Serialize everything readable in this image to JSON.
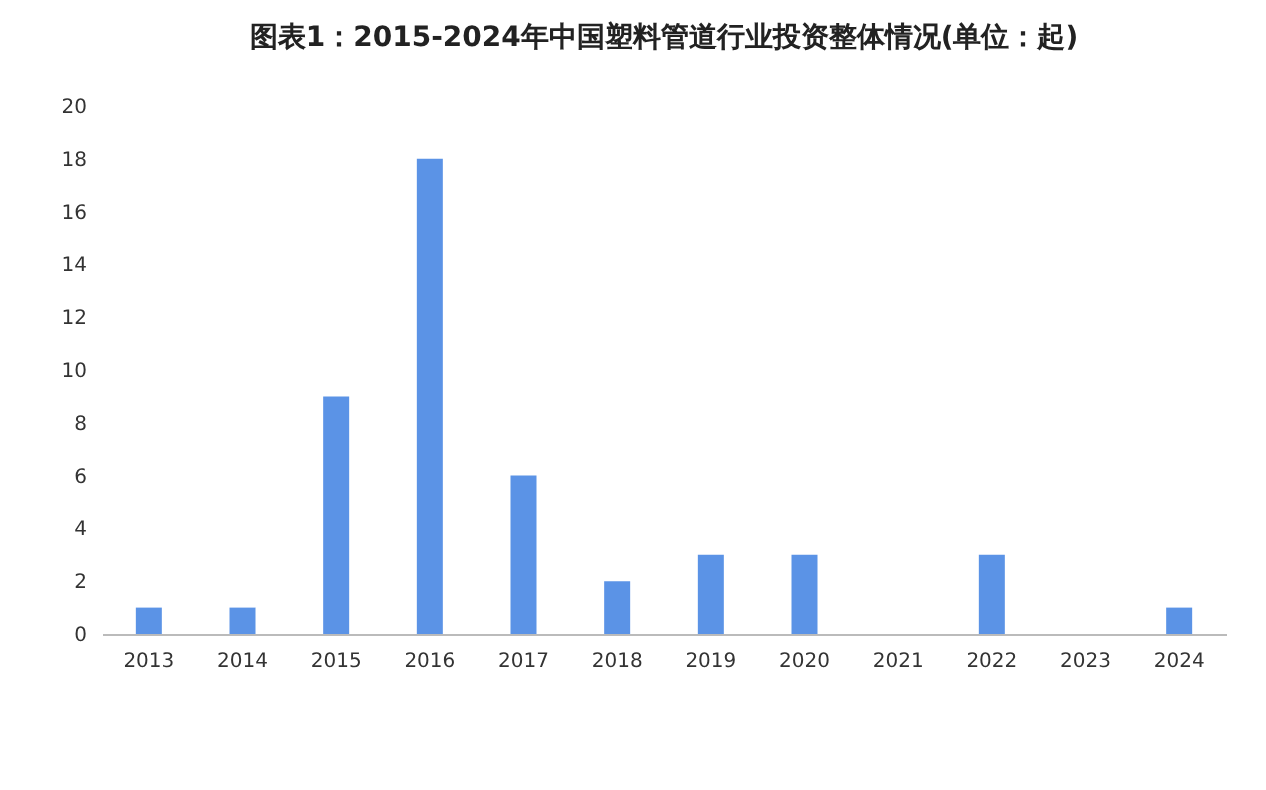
{
  "chart_data": {
    "type": "bar",
    "title": "图表1：2015-2024年中国塑料管道行业投资整体情况(单位：起)",
    "categories": [
      "2013",
      "2014",
      "2015",
      "2016",
      "2017",
      "2018",
      "2019",
      "2020",
      "2021",
      "2022",
      "2023",
      "2024"
    ],
    "values": [
      1,
      1,
      9,
      18,
      6,
      2,
      3,
      3,
      0,
      3,
      0,
      1
    ],
    "color": "#5b93e6",
    "ylim": [
      0,
      20
    ],
    "yticks": [
      0,
      2,
      4,
      6,
      8,
      10,
      12,
      14,
      16,
      18,
      20
    ],
    "grid": false
  }
}
